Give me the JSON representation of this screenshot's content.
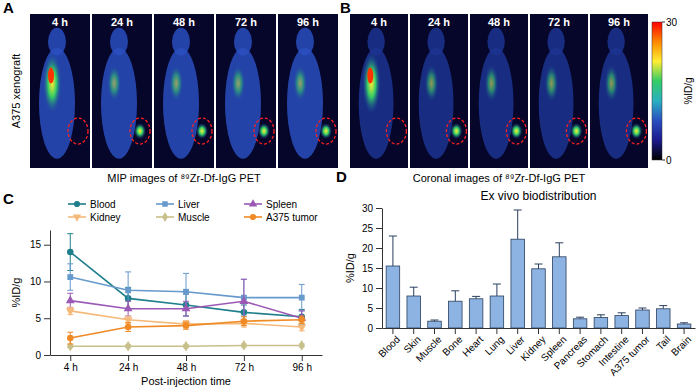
{
  "chart_data": [
    {
      "type": "image",
      "panel": "A",
      "frames": [
        "4 h",
        "24 h",
        "48 h",
        "72 h",
        "96 h"
      ],
      "side_label": "A375 xenograft",
      "caption": "MIP images of ⁸⁹Zr-Df-IgG PET"
    },
    {
      "type": "image",
      "panel": "B",
      "frames": [
        "4 h",
        "24 h",
        "48 h",
        "72 h",
        "96 h"
      ],
      "caption": "Coronal images of ⁸⁹Zr-Df-IgG PET",
      "colorbar": {
        "range": [
          0,
          30
        ],
        "ticks": [
          0,
          30
        ],
        "label": "%ID/g"
      }
    },
    {
      "type": "line",
      "panel": "C",
      "categories": [
        "4 h",
        "24 h",
        "48 h",
        "72 h",
        "96 h"
      ],
      "xlabel": "Post-injection time",
      "ylabel": "%ID/g",
      "ylim": [
        0,
        17
      ],
      "yticks": [
        0,
        5,
        10,
        15
      ],
      "legend": "top",
      "series": [
        {
          "name": "Blood",
          "color": "#1f7f8c",
          "marker": "circle",
          "values": [
            14.0,
            7.7,
            6.8,
            5.8,
            5.2
          ],
          "errors": [
            2.5,
            1.5,
            1.5,
            1.0,
            1.0
          ]
        },
        {
          "name": "Liver",
          "color": "#6699cc",
          "marker": "square",
          "values": [
            10.6,
            8.8,
            8.6,
            7.8,
            7.8
          ],
          "errors": [
            1.8,
            2.5,
            2.5,
            2.5,
            1.8
          ]
        },
        {
          "name": "Spleen",
          "color": "#9b59b6",
          "marker": "triangle-up",
          "values": [
            7.4,
            6.3,
            6.3,
            7.3,
            5.0
          ],
          "errors": [
            1.0,
            1.0,
            1.0,
            3.0,
            1.0
          ]
        },
        {
          "name": "Kidney",
          "color": "#f5b97a",
          "marker": "triangle-down",
          "values": [
            6.0,
            4.8,
            4.2,
            4.3,
            3.8
          ],
          "errors": [
            0.5,
            0.5,
            0.5,
            0.5,
            0.5
          ]
        },
        {
          "name": "Muscle",
          "color": "#c8c08a",
          "marker": "diamond",
          "values": [
            1.2,
            1.2,
            1.2,
            1.3,
            1.3
          ],
          "errors": [
            0.2,
            0.2,
            0.2,
            0.2,
            0.2
          ]
        },
        {
          "name": "A375 tumor",
          "color": "#f08a24",
          "marker": "circle",
          "values": [
            2.3,
            3.8,
            4.0,
            4.6,
            4.8
          ],
          "errors": [
            0.8,
            0.6,
            0.5,
            0.6,
            0.5
          ]
        }
      ]
    },
    {
      "type": "bar",
      "panel": "D",
      "title": "Ex vivo biodistribution",
      "ylabel": "%ID/g",
      "categories": [
        "Blood",
        "Skin",
        "Muscle",
        "Bone",
        "Heart",
        "Lung",
        "Liver",
        "Kidney",
        "Spleen",
        "Pancreas",
        "Stomach",
        "Intestine",
        "A375 tumor",
        "Tail",
        "Brain"
      ],
      "values": [
        15.5,
        8.0,
        1.7,
        6.7,
        7.3,
        8.0,
        22.2,
        14.8,
        17.8,
        2.3,
        2.6,
        3.1,
        4.5,
        4.8,
        1.0
      ],
      "errors": [
        7.5,
        2.2,
        0.3,
        2.6,
        0.6,
        3.0,
        7.3,
        1.2,
        3.5,
        0.4,
        0.7,
        0.7,
        0.5,
        0.8,
        0.3
      ],
      "color": "#8db3e2",
      "ylim": [
        0,
        30
      ],
      "yticks": [
        0,
        5,
        10,
        15,
        20,
        25,
        30
      ]
    }
  ]
}
